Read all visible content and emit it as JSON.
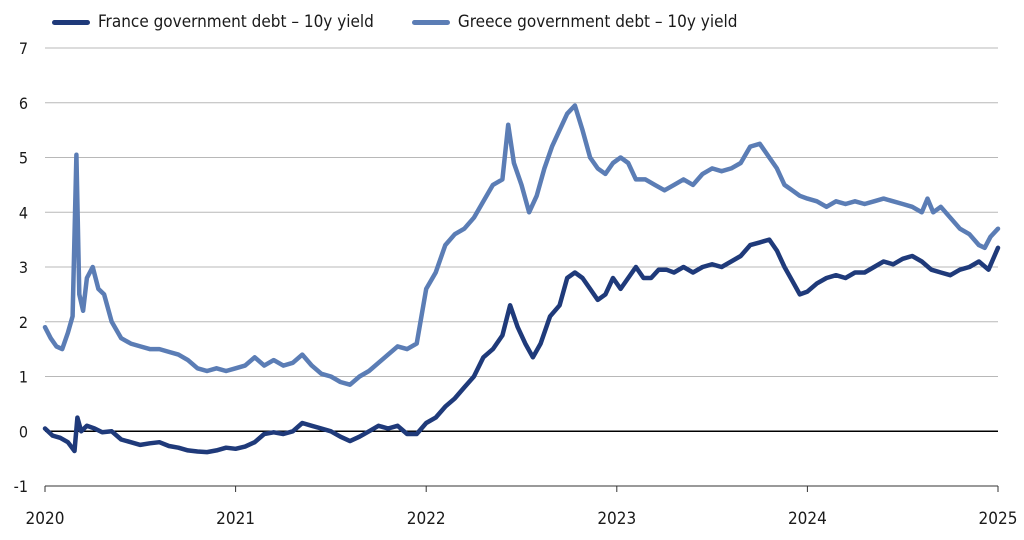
{
  "chart_data": {
    "type": "line",
    "title": "",
    "xlabel": "",
    "ylabel": "",
    "ylim": [
      -1,
      7
    ],
    "yticks": [
      "-1",
      "0",
      "1",
      "2",
      "3",
      "4",
      "5",
      "6",
      "7"
    ],
    "xlim": [
      2020,
      2025
    ],
    "xticks": [
      "2020",
      "2021",
      "2022",
      "2023",
      "2024",
      "2025"
    ],
    "grid": true,
    "legend_placement": "top-left",
    "series": [
      {
        "name": "France government debt – 10y yield",
        "color": "#1f3a7a",
        "points": [
          [
            2020.0,
            0.05
          ],
          [
            2020.04,
            -0.08
          ],
          [
            2020.08,
            -0.12
          ],
          [
            2020.12,
            -0.2
          ],
          [
            2020.155,
            -0.36
          ],
          [
            2020.17,
            0.25
          ],
          [
            2020.19,
            0.0
          ],
          [
            2020.22,
            0.1
          ],
          [
            2020.26,
            0.05
          ],
          [
            2020.3,
            -0.02
          ],
          [
            2020.35,
            0.0
          ],
          [
            2020.4,
            -0.15
          ],
          [
            2020.45,
            -0.2
          ],
          [
            2020.5,
            -0.25
          ],
          [
            2020.55,
            -0.22
          ],
          [
            2020.6,
            -0.2
          ],
          [
            2020.65,
            -0.27
          ],
          [
            2020.7,
            -0.3
          ],
          [
            2020.75,
            -0.35
          ],
          [
            2020.8,
            -0.37
          ],
          [
            2020.85,
            -0.38
          ],
          [
            2020.9,
            -0.35
          ],
          [
            2020.95,
            -0.3
          ],
          [
            2021.0,
            -0.32
          ],
          [
            2021.05,
            -0.28
          ],
          [
            2021.1,
            -0.2
          ],
          [
            2021.15,
            -0.05
          ],
          [
            2021.2,
            -0.02
          ],
          [
            2021.25,
            -0.05
          ],
          [
            2021.3,
            0.0
          ],
          [
            2021.35,
            0.15
          ],
          [
            2021.4,
            0.1
          ],
          [
            2021.45,
            0.05
          ],
          [
            2021.5,
            0.0
          ],
          [
            2021.55,
            -0.1
          ],
          [
            2021.6,
            -0.18
          ],
          [
            2021.65,
            -0.1
          ],
          [
            2021.7,
            0.0
          ],
          [
            2021.75,
            0.1
          ],
          [
            2021.8,
            0.05
          ],
          [
            2021.85,
            0.1
          ],
          [
            2021.9,
            -0.05
          ],
          [
            2021.95,
            -0.05
          ],
          [
            2022.0,
            0.15
          ],
          [
            2022.05,
            0.25
          ],
          [
            2022.1,
            0.45
          ],
          [
            2022.15,
            0.6
          ],
          [
            2022.2,
            0.8
          ],
          [
            2022.25,
            1.0
          ],
          [
            2022.3,
            1.35
          ],
          [
            2022.35,
            1.5
          ],
          [
            2022.4,
            1.75
          ],
          [
            2022.44,
            2.3
          ],
          [
            2022.48,
            1.9
          ],
          [
            2022.52,
            1.6
          ],
          [
            2022.56,
            1.35
          ],
          [
            2022.6,
            1.6
          ],
          [
            2022.65,
            2.1
          ],
          [
            2022.7,
            2.3
          ],
          [
            2022.74,
            2.8
          ],
          [
            2022.78,
            2.9
          ],
          [
            2022.82,
            2.8
          ],
          [
            2022.86,
            2.6
          ],
          [
            2022.9,
            2.4
          ],
          [
            2022.94,
            2.5
          ],
          [
            2022.98,
            2.8
          ],
          [
            2023.02,
            2.6
          ],
          [
            2023.06,
            2.8
          ],
          [
            2023.1,
            3.0
          ],
          [
            2023.14,
            2.8
          ],
          [
            2023.18,
            2.8
          ],
          [
            2023.22,
            2.95
          ],
          [
            2023.26,
            2.95
          ],
          [
            2023.3,
            2.9
          ],
          [
            2023.35,
            3.0
          ],
          [
            2023.4,
            2.9
          ],
          [
            2023.45,
            3.0
          ],
          [
            2023.5,
            3.05
          ],
          [
            2023.55,
            3.0
          ],
          [
            2023.6,
            3.1
          ],
          [
            2023.65,
            3.2
          ],
          [
            2023.7,
            3.4
          ],
          [
            2023.75,
            3.45
          ],
          [
            2023.8,
            3.5
          ],
          [
            2023.84,
            3.3
          ],
          [
            2023.88,
            3.0
          ],
          [
            2023.92,
            2.75
          ],
          [
            2023.96,
            2.5
          ],
          [
            2024.0,
            2.55
          ],
          [
            2024.05,
            2.7
          ],
          [
            2024.1,
            2.8
          ],
          [
            2024.15,
            2.85
          ],
          [
            2024.2,
            2.8
          ],
          [
            2024.25,
            2.9
          ],
          [
            2024.3,
            2.9
          ],
          [
            2024.35,
            3.0
          ],
          [
            2024.4,
            3.1
          ],
          [
            2024.45,
            3.05
          ],
          [
            2024.5,
            3.15
          ],
          [
            2024.55,
            3.2
          ],
          [
            2024.6,
            3.1
          ],
          [
            2024.65,
            2.95
          ],
          [
            2024.7,
            2.9
          ],
          [
            2024.75,
            2.85
          ],
          [
            2024.8,
            2.95
          ],
          [
            2024.85,
            3.0
          ],
          [
            2024.9,
            3.1
          ],
          [
            2024.95,
            2.95
          ],
          [
            2025.0,
            3.35
          ]
        ]
      },
      {
        "name": "Greece government debt – 10y yield",
        "color": "#5b7db5",
        "points": [
          [
            2020.0,
            1.9
          ],
          [
            2020.03,
            1.7
          ],
          [
            2020.06,
            1.55
          ],
          [
            2020.09,
            1.5
          ],
          [
            2020.12,
            1.8
          ],
          [
            2020.145,
            2.1
          ],
          [
            2020.165,
            5.05
          ],
          [
            2020.18,
            2.5
          ],
          [
            2020.2,
            2.2
          ],
          [
            2020.22,
            2.8
          ],
          [
            2020.25,
            3.0
          ],
          [
            2020.28,
            2.6
          ],
          [
            2020.31,
            2.5
          ],
          [
            2020.35,
            2.0
          ],
          [
            2020.4,
            1.7
          ],
          [
            2020.45,
            1.6
          ],
          [
            2020.5,
            1.55
          ],
          [
            2020.55,
            1.5
          ],
          [
            2020.6,
            1.5
          ],
          [
            2020.65,
            1.45
          ],
          [
            2020.7,
            1.4
          ],
          [
            2020.75,
            1.3
          ],
          [
            2020.8,
            1.15
          ],
          [
            2020.85,
            1.1
          ],
          [
            2020.9,
            1.15
          ],
          [
            2020.95,
            1.1
          ],
          [
            2021.0,
            1.15
          ],
          [
            2021.05,
            1.2
          ],
          [
            2021.1,
            1.35
          ],
          [
            2021.15,
            1.2
          ],
          [
            2021.2,
            1.3
          ],
          [
            2021.25,
            1.2
          ],
          [
            2021.3,
            1.25
          ],
          [
            2021.35,
            1.4
          ],
          [
            2021.4,
            1.2
          ],
          [
            2021.45,
            1.05
          ],
          [
            2021.5,
            1.0
          ],
          [
            2021.55,
            0.9
          ],
          [
            2021.6,
            0.85
          ],
          [
            2021.65,
            1.0
          ],
          [
            2021.7,
            1.1
          ],
          [
            2021.75,
            1.25
          ],
          [
            2021.8,
            1.4
          ],
          [
            2021.85,
            1.55
          ],
          [
            2021.9,
            1.5
          ],
          [
            2021.95,
            1.6
          ],
          [
            2022.0,
            2.6
          ],
          [
            2022.05,
            2.9
          ],
          [
            2022.1,
            3.4
          ],
          [
            2022.15,
            3.6
          ],
          [
            2022.2,
            3.7
          ],
          [
            2022.25,
            3.9
          ],
          [
            2022.3,
            4.2
          ],
          [
            2022.35,
            4.5
          ],
          [
            2022.4,
            4.6
          ],
          [
            2022.43,
            5.6
          ],
          [
            2022.46,
            4.9
          ],
          [
            2022.5,
            4.5
          ],
          [
            2022.54,
            4.0
          ],
          [
            2022.58,
            4.3
          ],
          [
            2022.62,
            4.8
          ],
          [
            2022.66,
            5.2
          ],
          [
            2022.7,
            5.5
          ],
          [
            2022.74,
            5.8
          ],
          [
            2022.78,
            5.95
          ],
          [
            2022.82,
            5.5
          ],
          [
            2022.86,
            5.0
          ],
          [
            2022.9,
            4.8
          ],
          [
            2022.94,
            4.7
          ],
          [
            2022.98,
            4.9
          ],
          [
            2023.02,
            5.0
          ],
          [
            2023.06,
            4.9
          ],
          [
            2023.1,
            4.6
          ],
          [
            2023.15,
            4.6
          ],
          [
            2023.2,
            4.5
          ],
          [
            2023.25,
            4.4
          ],
          [
            2023.3,
            4.5
          ],
          [
            2023.35,
            4.6
          ],
          [
            2023.4,
            4.5
          ],
          [
            2023.45,
            4.7
          ],
          [
            2023.5,
            4.8
          ],
          [
            2023.55,
            4.75
          ],
          [
            2023.6,
            4.8
          ],
          [
            2023.65,
            4.9
          ],
          [
            2023.7,
            5.2
          ],
          [
            2023.75,
            5.25
          ],
          [
            2023.8,
            5.0
          ],
          [
            2023.84,
            4.8
          ],
          [
            2023.88,
            4.5
          ],
          [
            2023.92,
            4.4
          ],
          [
            2023.96,
            4.3
          ],
          [
            2024.0,
            4.25
          ],
          [
            2024.05,
            4.2
          ],
          [
            2024.1,
            4.1
          ],
          [
            2024.15,
            4.2
          ],
          [
            2024.2,
            4.15
          ],
          [
            2024.25,
            4.2
          ],
          [
            2024.3,
            4.15
          ],
          [
            2024.35,
            4.2
          ],
          [
            2024.4,
            4.25
          ],
          [
            2024.45,
            4.2
          ],
          [
            2024.5,
            4.15
          ],
          [
            2024.55,
            4.1
          ],
          [
            2024.6,
            4.0
          ],
          [
            2024.63,
            4.25
          ],
          [
            2024.66,
            4.0
          ],
          [
            2024.7,
            4.1
          ],
          [
            2024.75,
            3.9
          ],
          [
            2024.8,
            3.7
          ],
          [
            2024.85,
            3.6
          ],
          [
            2024.9,
            3.4
          ],
          [
            2024.93,
            3.35
          ],
          [
            2024.96,
            3.55
          ],
          [
            2025.0,
            3.7
          ]
        ]
      }
    ]
  }
}
